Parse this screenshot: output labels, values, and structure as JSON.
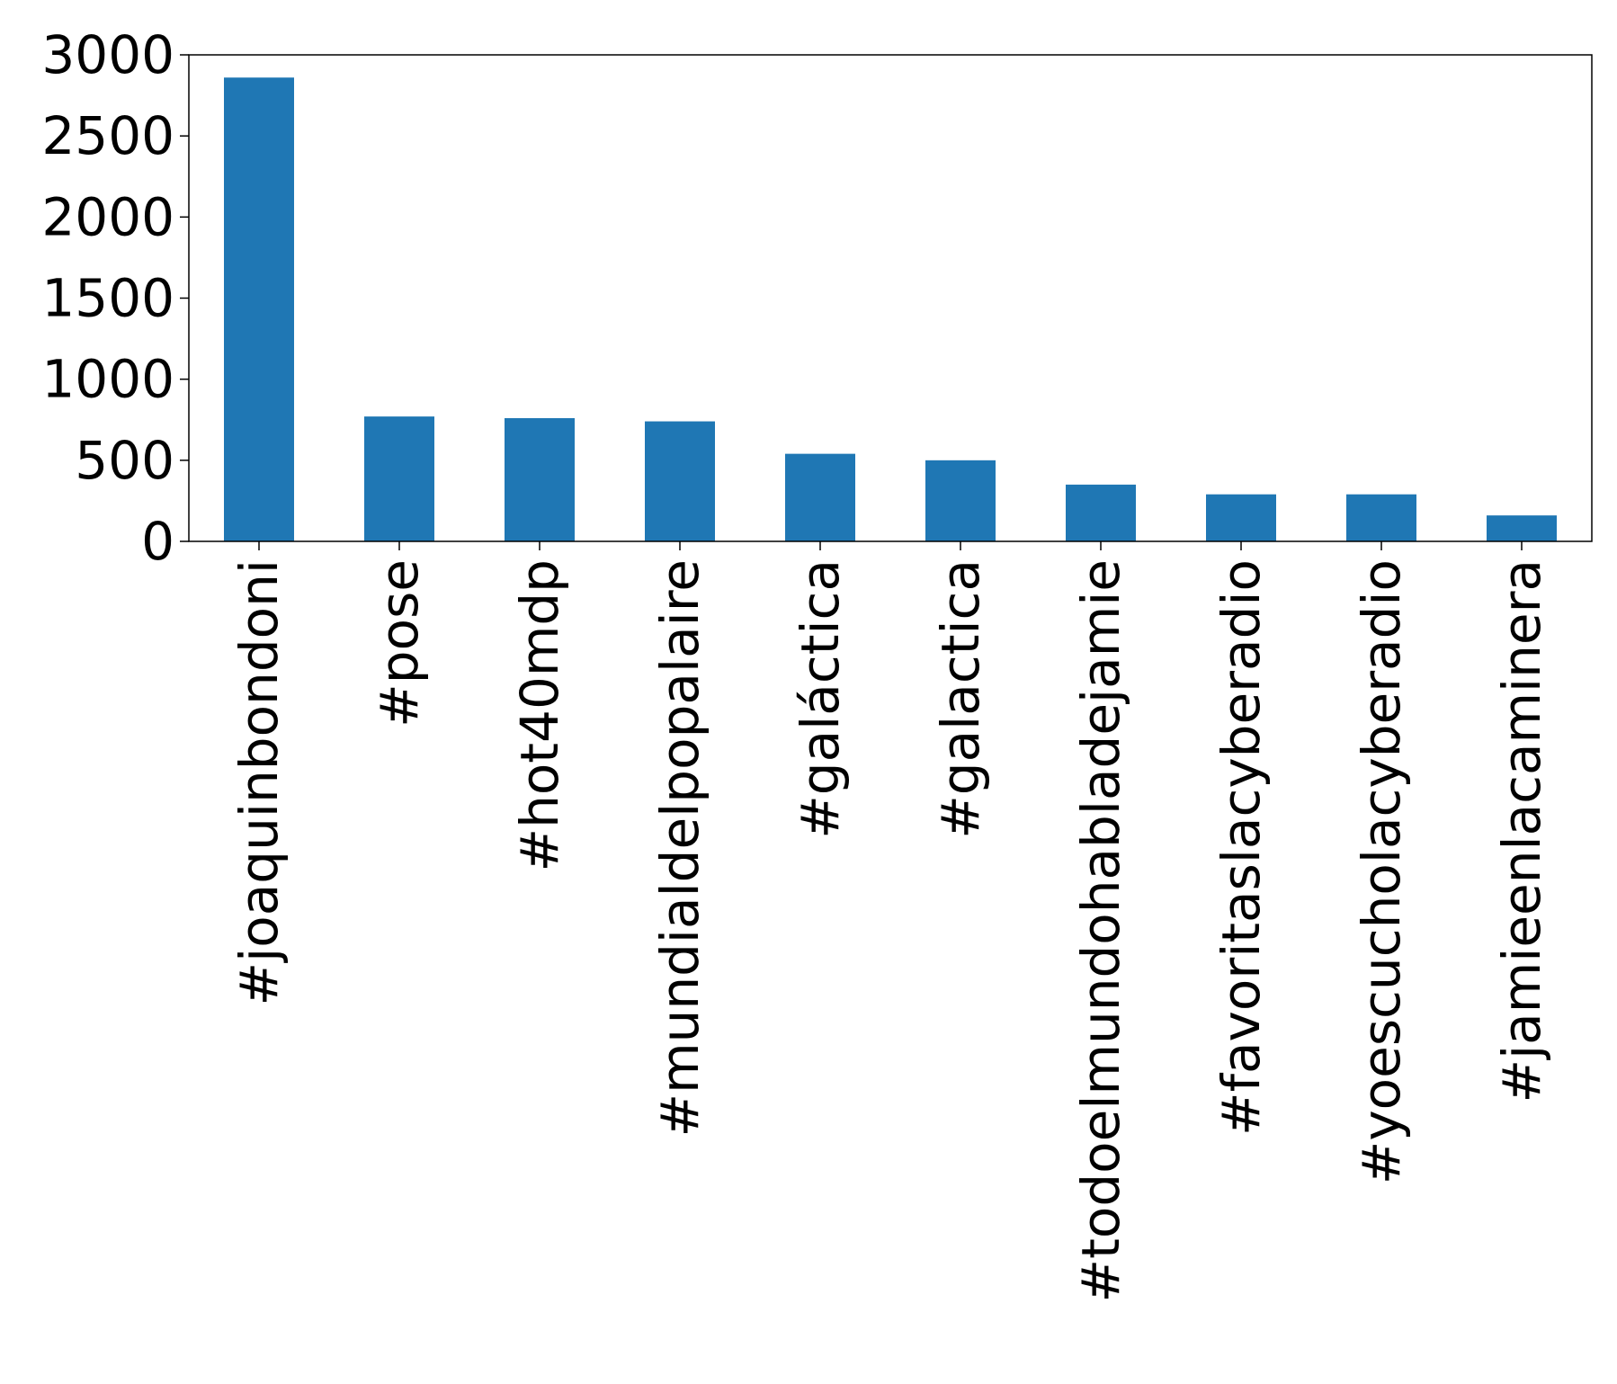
{
  "chart_data": {
    "type": "bar",
    "categories": [
      "#joaquinbondoni",
      "#pose",
      "#hot40mdp",
      "#mundialdelpopalaire",
      "#galáctica",
      "#galactica",
      "#todoelmundohabladejamie",
      "#favoritaslacyberadio",
      "#yoescucholacyberadio",
      "#jamieenlacaminera"
    ],
    "values": [
      2860,
      770,
      760,
      740,
      540,
      500,
      350,
      290,
      290,
      160
    ],
    "title": "",
    "xlabel": "",
    "ylabel": "",
    "ylim": [
      0,
      3000
    ],
    "yticks": [
      0,
      500,
      1000,
      1500,
      2000,
      2500,
      3000
    ],
    "grid": false,
    "legend": "none",
    "bar_color": "#1f77b4"
  }
}
